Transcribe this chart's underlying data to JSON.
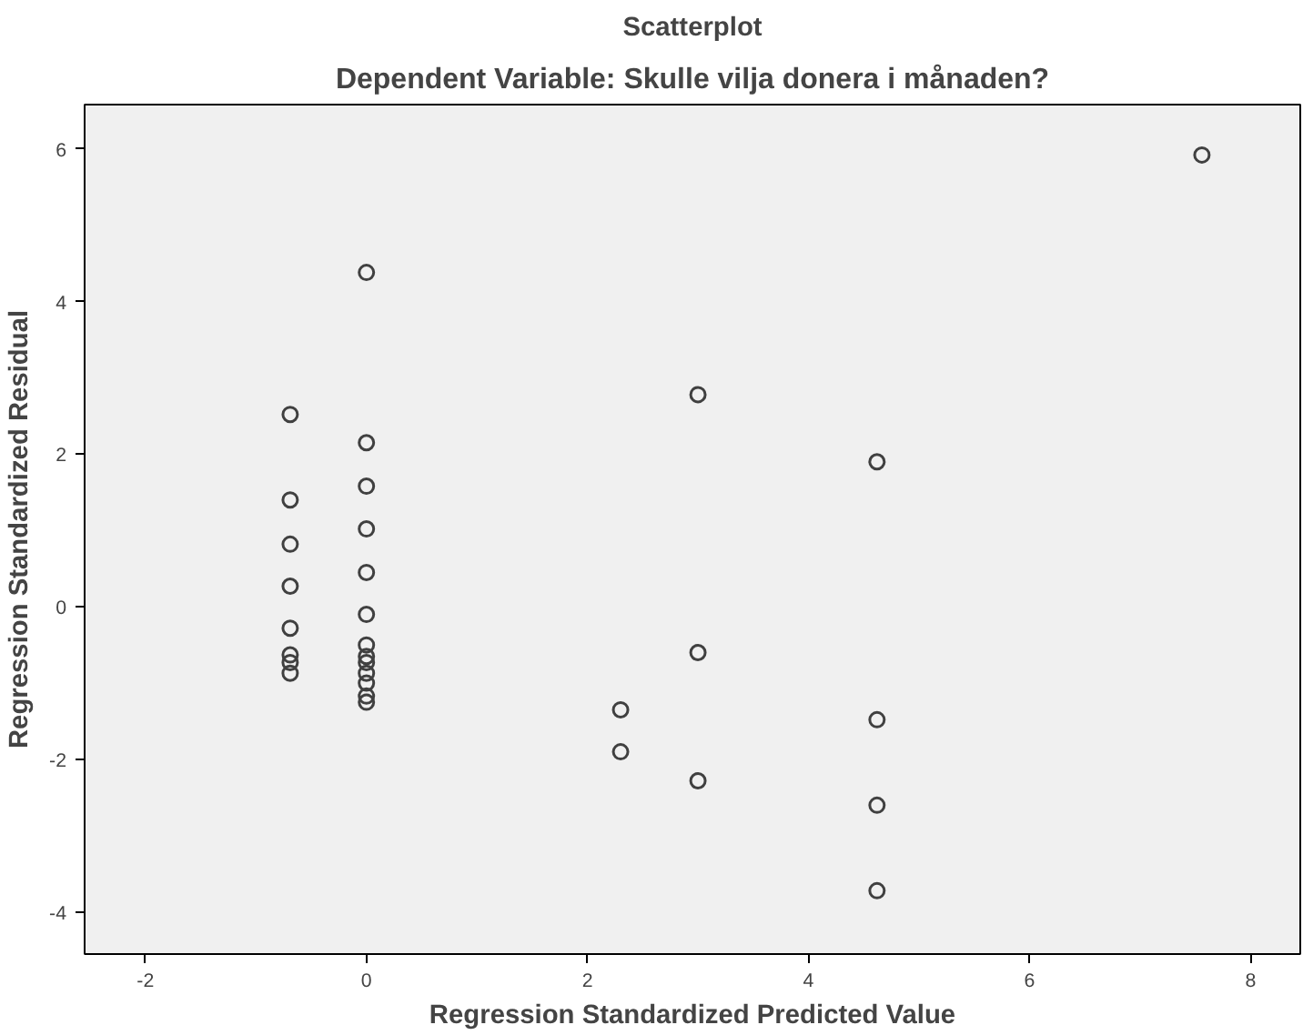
{
  "chart_data": {
    "type": "scatter",
    "title": "Scatterplot",
    "subtitle": "Dependent Variable: Skulle vilja donera i månaden?",
    "xlabel": "Regression Standardized Predicted Value",
    "ylabel": "Regression Standardized Residual",
    "xlim": [
      -2.55,
      8.45
    ],
    "ylim": [
      -4.55,
      6.58
    ],
    "xticks": [
      -2,
      0,
      2,
      4,
      6,
      8
    ],
    "yticks": [
      -4,
      -2,
      0,
      2,
      4,
      6
    ],
    "grid": false,
    "marker": "circle",
    "series": [
      {
        "color": "#404040",
        "x": [
          -0.69,
          -0.69,
          -0.69,
          -0.69,
          -0.69,
          -0.69,
          -0.69,
          -0.69,
          0,
          0,
          0,
          0,
          0,
          0,
          0,
          0,
          0,
          0,
          0,
          0,
          0,
          2.3,
          2.3,
          3.0,
          3.0,
          3.0,
          4.62,
          4.62,
          4.62,
          4.62,
          7.56
        ],
        "values": [
          2.52,
          1.4,
          0.82,
          0.27,
          -0.28,
          -0.63,
          -0.73,
          -0.87,
          4.38,
          2.15,
          1.58,
          1.02,
          0.45,
          -0.1,
          -0.5,
          -0.65,
          -0.73,
          -0.87,
          -1.0,
          -1.17,
          -1.25,
          -1.35,
          -1.9,
          2.78,
          -0.6,
          -2.28,
          1.9,
          -1.48,
          -2.6,
          -3.72,
          5.92
        ]
      }
    ]
  }
}
